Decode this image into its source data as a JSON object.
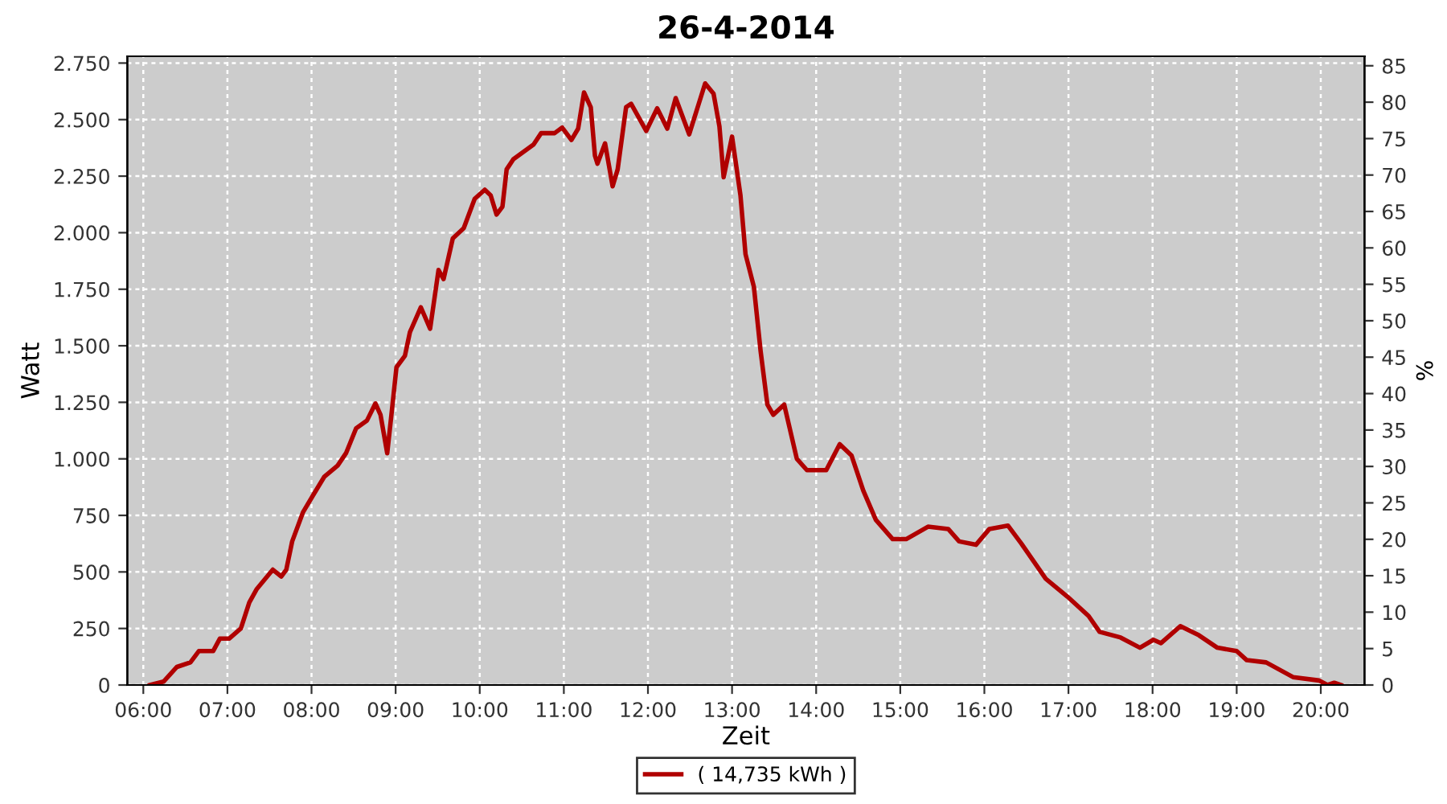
{
  "chart_data": {
    "type": "line",
    "title": "26-4-2014",
    "xlabel": "Zeit",
    "ylabel": "Watt",
    "y2label": "%",
    "xlim": [
      5.81,
      20.52
    ],
    "xticks": [
      {
        "value": 6,
        "label": "06:00"
      },
      {
        "value": 7,
        "label": "07:00"
      },
      {
        "value": 8,
        "label": "08:00"
      },
      {
        "value": 9,
        "label": "09:00"
      },
      {
        "value": 10,
        "label": "10:00"
      },
      {
        "value": 11,
        "label": "11:00"
      },
      {
        "value": 12,
        "label": "12:00"
      },
      {
        "value": 13,
        "label": "13:00"
      },
      {
        "value": 14,
        "label": "14:00"
      },
      {
        "value": 15,
        "label": "15:00"
      },
      {
        "value": 16,
        "label": "16:00"
      },
      {
        "value": 17,
        "label": "17:00"
      },
      {
        "value": 18,
        "label": "18:00"
      },
      {
        "value": 19,
        "label": "19:00"
      },
      {
        "value": 20,
        "label": "20:00"
      }
    ],
    "ylim": [
      0,
      2780
    ],
    "yticks": [
      0,
      250,
      500,
      750,
      {
        "value": 1000,
        "label": "1.000"
      },
      {
        "value": 1250,
        "label": "1.250"
      },
      {
        "value": 1500,
        "label": "1.500"
      },
      {
        "value": 1750,
        "label": "1.750"
      },
      {
        "value": 2000,
        "label": "2.000"
      },
      {
        "value": 2250,
        "label": "2.250"
      },
      {
        "value": 2500,
        "label": "2.500"
      },
      {
        "value": 2750,
        "label": "2.750"
      }
    ],
    "y2lim": [
      0,
      86.3
    ],
    "y2ticks": [
      0,
      5,
      10,
      15,
      20,
      25,
      30,
      35,
      40,
      45,
      50,
      55,
      60,
      65,
      70,
      75,
      80,
      85
    ],
    "grid": true,
    "legend": "bottom",
    "marker": "none",
    "line_style": "solid",
    "series": [
      {
        "name": "( 14,735 kWh )",
        "color": "#b00000",
        "x": [
          6.08,
          6.24,
          6.4,
          6.56,
          6.66,
          6.83,
          6.91,
          7.02,
          7.16,
          7.26,
          7.35,
          7.54,
          7.64,
          7.7,
          7.77,
          7.9,
          8.02,
          8.15,
          8.31,
          8.41,
          8.53,
          8.66,
          8.76,
          8.82,
          8.9,
          8.95,
          9.01,
          9.11,
          9.17,
          9.3,
          9.41,
          9.51,
          9.57,
          9.68,
          9.81,
          9.94,
          10.06,
          10.13,
          10.2,
          10.27,
          10.32,
          10.4,
          10.64,
          10.73,
          10.89,
          10.98,
          11.09,
          11.17,
          11.24,
          11.32,
          11.37,
          11.4,
          11.49,
          11.58,
          11.64,
          11.74,
          11.8,
          11.98,
          12.11,
          12.23,
          12.33,
          12.49,
          12.68,
          12.78,
          12.85,
          12.9,
          13.0,
          13.1,
          13.16,
          13.26,
          13.34,
          13.42,
          13.49,
          13.62,
          13.77,
          13.89,
          14.12,
          14.28,
          14.42,
          14.56,
          14.71,
          14.91,
          15.07,
          15.33,
          15.57,
          15.7,
          15.9,
          16.06,
          16.28,
          16.44,
          16.73,
          16.99,
          17.24,
          17.37,
          17.62,
          17.85,
          18.01,
          18.1,
          18.33,
          18.55,
          18.77,
          19.0,
          19.12,
          19.35,
          19.67,
          19.98,
          20.08,
          20.16,
          20.24
        ],
        "values": [
          0,
          15,
          80,
          100,
          150,
          150,
          205,
          205,
          250,
          365,
          425,
          510,
          480,
          510,
          635,
          765,
          840,
          920,
          970,
          1025,
          1135,
          1170,
          1245,
          1195,
          1025,
          1195,
          1405,
          1455,
          1560,
          1670,
          1575,
          1835,
          1795,
          1975,
          2020,
          2150,
          2190,
          2165,
          2080,
          2115,
          2280,
          2325,
          2390,
          2440,
          2440,
          2465,
          2410,
          2460,
          2620,
          2555,
          2340,
          2305,
          2395,
          2205,
          2280,
          2555,
          2570,
          2450,
          2550,
          2460,
          2595,
          2435,
          2660,
          2615,
          2470,
          2245,
          2425,
          2165,
          1905,
          1760,
          1475,
          1240,
          1195,
          1240,
          1000,
          950,
          950,
          1065,
          1015,
          860,
          730,
          645,
          645,
          700,
          690,
          635,
          620,
          690,
          705,
          625,
          470,
          390,
          305,
          235,
          210,
          165,
          200,
          185,
          260,
          220,
          165,
          150,
          110,
          100,
          35,
          20,
          0,
          10,
          0
        ]
      }
    ]
  }
}
